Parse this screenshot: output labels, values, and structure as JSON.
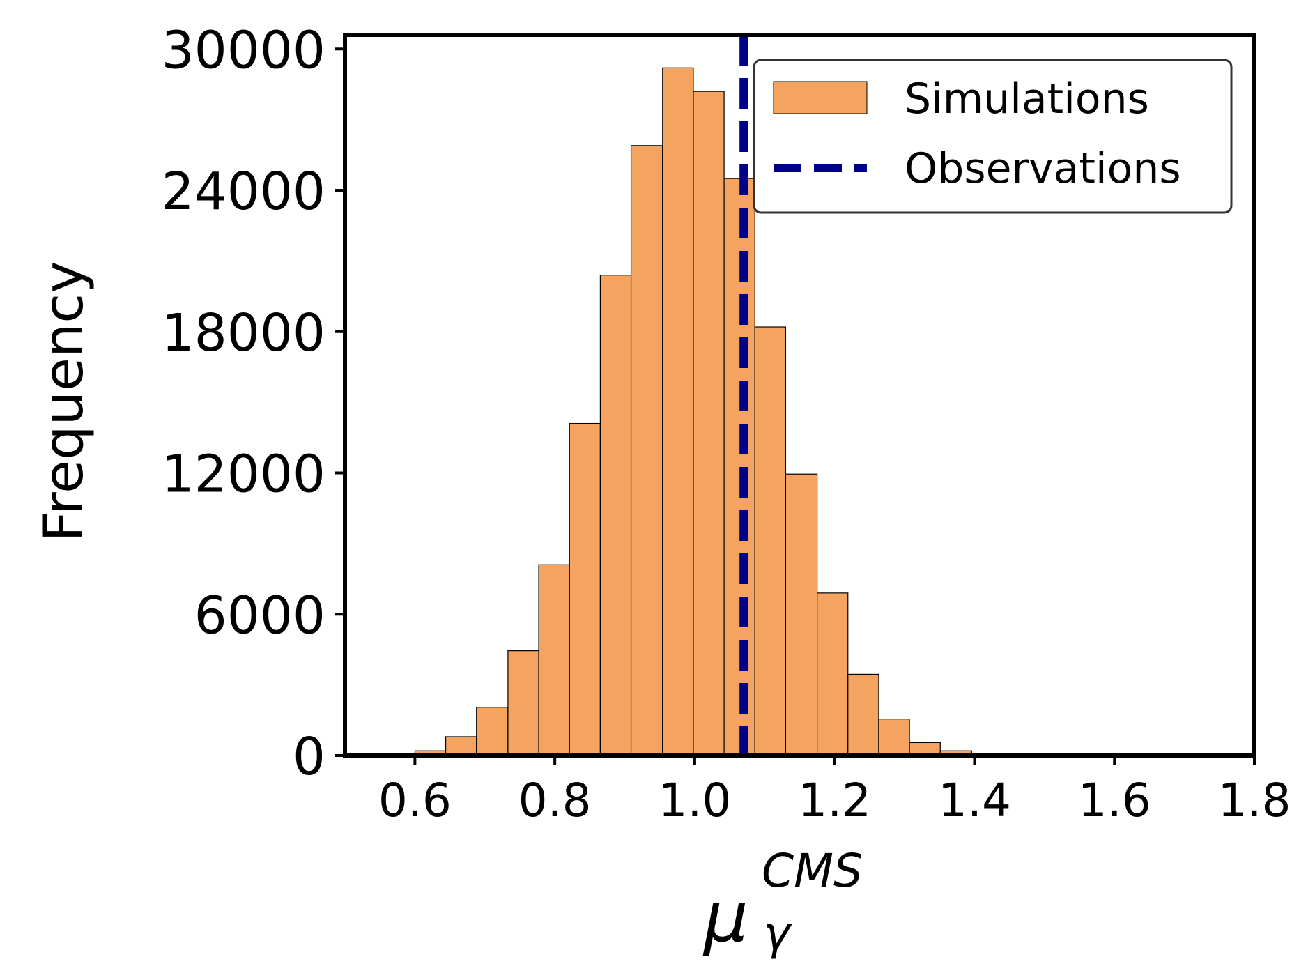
{
  "chart_data": {
    "type": "bar",
    "subtype": "histogram",
    "title": "",
    "xlabel": {
      "symbol": "μ",
      "subscript": "γ",
      "superscript": "CMS"
    },
    "ylabel": "Frequency",
    "xlim": [
      0.5,
      1.8
    ],
    "ylim": [
      0,
      30600
    ],
    "xticks": [
      0.6,
      0.8,
      1.0,
      1.2,
      1.4,
      1.6,
      1.8
    ],
    "xtick_labels": [
      "0.6",
      "0.8",
      "1.0",
      "1.2",
      "1.4",
      "1.6",
      "1.8"
    ],
    "yticks": [
      0,
      6000,
      12000,
      18000,
      24000,
      30000
    ],
    "ytick_labels": [
      "0",
      "6000",
      "12000",
      "18000",
      "24000",
      "30000"
    ],
    "bin_edges": [
      0.6,
      0.644,
      0.688,
      0.733,
      0.777,
      0.821,
      0.865,
      0.909,
      0.954,
      0.998,
      1.042,
      1.086,
      1.13,
      1.175,
      1.219,
      1.263,
      1.307,
      1.351,
      1.396
    ],
    "values": [
      200,
      800,
      2050,
      4450,
      8100,
      14100,
      20400,
      25900,
      29200,
      28200,
      24500,
      18200,
      11950,
      6900,
      3450,
      1550,
      550,
      200
    ],
    "series": [
      {
        "name": "Simulations",
        "kind": "histogram",
        "color": "#F4A460",
        "edgecolor": "#000000"
      },
      {
        "name": "Observations",
        "kind": "vline",
        "x": 1.07,
        "color": "#00008B",
        "linestyle": "dashed"
      }
    ],
    "legend": {
      "position": "top-right",
      "entries": [
        "Simulations",
        "Observations"
      ]
    },
    "grid": false
  }
}
